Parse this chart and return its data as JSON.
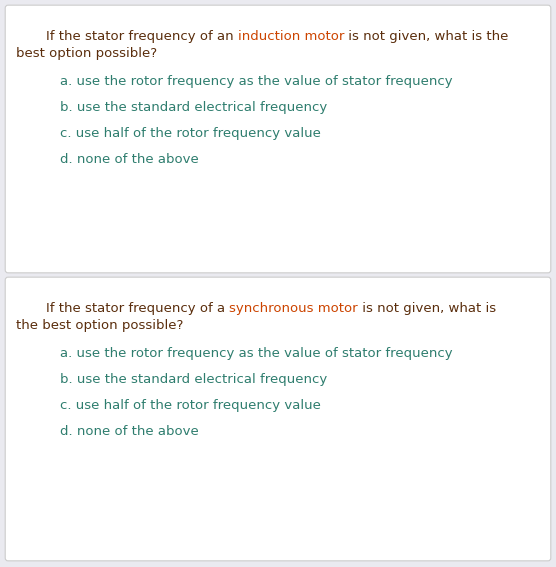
{
  "bg_color": "#eaeaf0",
  "card_color": "#ffffff",
  "card_border_color": "#cccccc",
  "question_color": "#5a2d0c",
  "highlight_color": "#cc4400",
  "option_color": "#2e7d6e",
  "font_size_question": 9.5,
  "font_size_option": 9.5,
  "figsize": [
    5.56,
    5.67
  ],
  "dpi": 100,
  "questions": [
    {
      "question_prefix": "If the stator frequency of an ",
      "question_highlight": "induction motor",
      "question_suffix1": " is not given, what is the",
      "question_suffix2": "best option possible?",
      "options": [
        "a. use the rotor frequency as the value of stator frequency",
        "b. use the standard electrical frequency",
        "c. use half of the rotor frequency value",
        "d. none of the above"
      ]
    },
    {
      "question_prefix": "If the stator frequency of a ",
      "question_highlight": "synchronous motor",
      "question_suffix1": " is not given, what is",
      "question_suffix2": "the best option possible?",
      "options": [
        "a. use the rotor frequency as the value of stator frequency",
        "b. use the standard electrical frequency",
        "c. use half of the rotor frequency value",
        "d. none of the above"
      ]
    }
  ]
}
